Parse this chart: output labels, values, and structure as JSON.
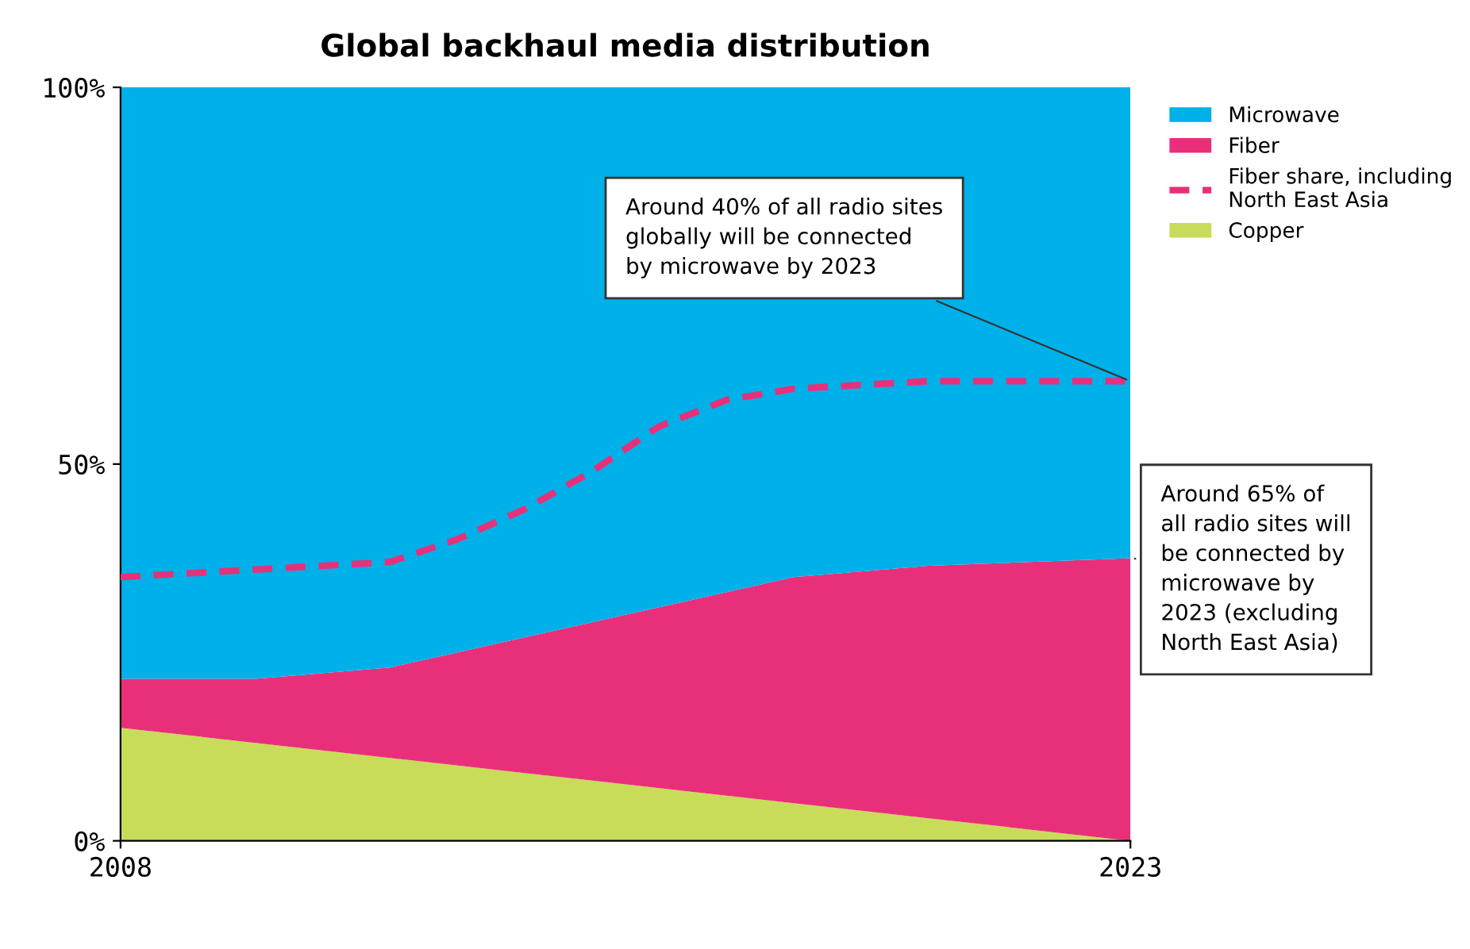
{
  "chart_data": {
    "type": "area",
    "stacked": true,
    "title": "Global backhaul media distribution",
    "x": [
      2008,
      2010,
      2012,
      2014,
      2016,
      2018,
      2020,
      2023
    ],
    "series": [
      {
        "name": "Copper",
        "color": "#c8dc5a",
        "values": [
          15,
          13,
          11,
          9,
          7,
          5,
          3,
          0
        ]
      },
      {
        "name": "Fiber",
        "color": "#e8307a",
        "values": [
          6.5,
          8.5,
          12,
          18,
          24,
          30,
          33.5,
          37.5
        ]
      },
      {
        "name": "Microwave",
        "color": "#00b0e8",
        "values": [
          78.5,
          78.5,
          77,
          73,
          69,
          65,
          63.5,
          62.5
        ]
      },
      {
        "name": "Fiber share, including\nNorth East Asia",
        "type": "line",
        "line_style": "dashed",
        "color": "#e8307a",
        "x": [
          2008,
          2010,
          2012,
          2013,
          2014,
          2015,
          2016,
          2017,
          2018,
          2020,
          2023
        ],
        "values": [
          35,
          36,
          37,
          40,
          44,
          49,
          55,
          58.5,
          60,
          61,
          61
        ]
      }
    ],
    "xlim": [
      2008,
      2023
    ],
    "xticks": [
      2008,
      2023
    ],
    "ylim": [
      0,
      100
    ],
    "yticks": [
      {
        "value": 0,
        "label": "0%"
      },
      {
        "value": 50,
        "label": "50%"
      },
      {
        "value": 100,
        "label": "100%"
      }
    ],
    "grid": false,
    "legend": "right",
    "annotations": [
      {
        "text": "Around 40% of all radio sites\nglobally will be connected\nby microwave by 2023",
        "x": 2023,
        "y": 61
      },
      {
        "text": "Around 65% of\nall radio sites will\nbe connected by\nmicrowave by\n2023 (excluding\nNorth East Asia)",
        "x": 2023,
        "y": 37.5
      }
    ]
  }
}
